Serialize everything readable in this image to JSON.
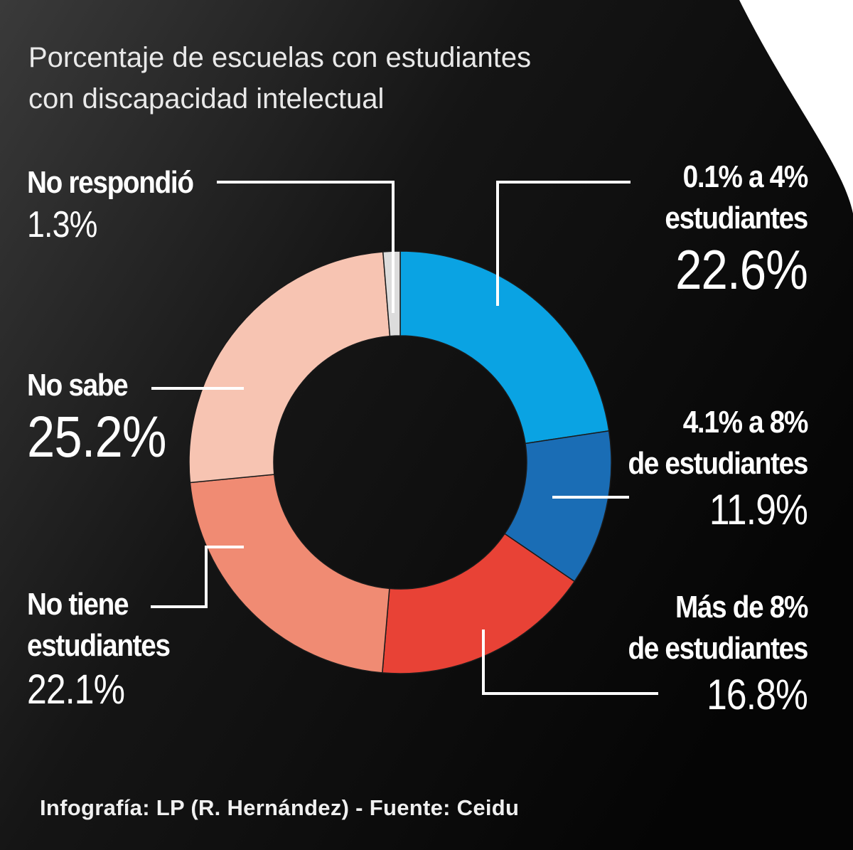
{
  "title_lines": [
    "Porcentaje de escuelas con estudiantes",
    "con discapacidad intelectual"
  ],
  "footer": "Infografía: LP (R. Hernández) - Fuente: Ceidu",
  "labels": {
    "no_respondio": {
      "name": "No respondió",
      "value": "1.3%"
    },
    "no_sabe": {
      "name": "No sabe",
      "value": "25.2%"
    },
    "no_tiene": {
      "name_lines": [
        "No tiene",
        "estudiantes"
      ],
      "value": "22.1%"
    },
    "range1": {
      "name_lines": [
        "0.1% a 4%",
        "estudiantes"
      ],
      "value": "22.6%"
    },
    "range2": {
      "name_lines": [
        "4.1% a 8%",
        "de estudiantes"
      ],
      "value": "11.9%"
    },
    "range3": {
      "name_lines": [
        "Más de 8%",
        "de estudiantes"
      ],
      "value": "16.8%"
    }
  },
  "chart_data": {
    "type": "pie",
    "variant": "donut",
    "title": "Porcentaje de escuelas con estudiantes con discapacidad intelectual",
    "categories": [
      "0.1% a 4% estudiantes",
      "4.1% a 8% de estudiantes",
      "Más de 8% de estudiantes",
      "No tiene estudiantes",
      "No sabe",
      "No respondió"
    ],
    "values": [
      22.6,
      11.9,
      16.8,
      22.1,
      25.2,
      1.3
    ],
    "unit": "%",
    "colors": [
      "#0aa3e3",
      "#1a6db5",
      "#e84236",
      "#f08b73",
      "#f7c4b2",
      "#dcdcdc"
    ]
  }
}
